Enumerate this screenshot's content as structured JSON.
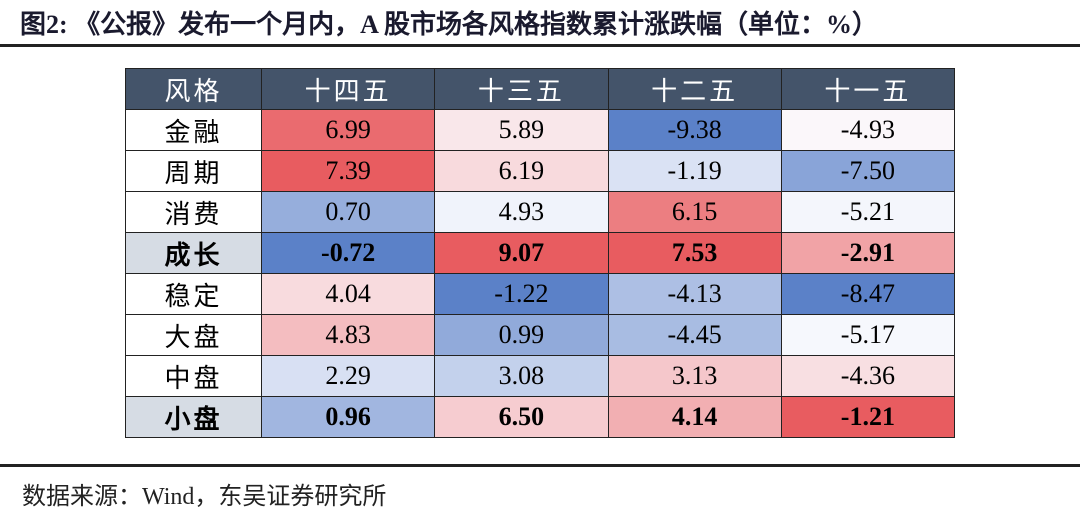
{
  "title": "图2:   《公报》发布一个月内，A 股市场各风格指数累计涨跌幅（单位：%）",
  "table": {
    "header": [
      "风格",
      "十四五",
      "十三五",
      "十二五",
      "十一五"
    ],
    "rows": [
      {
        "label": "金融",
        "values": [
          "6.99",
          "5.89",
          "-9.38",
          "-4.93"
        ],
        "bold": false
      },
      {
        "label": "周期",
        "values": [
          "7.39",
          "6.19",
          "-1.19",
          "-7.50"
        ],
        "bold": false
      },
      {
        "label": "消费",
        "values": [
          "0.70",
          "4.93",
          "6.15",
          "-5.21"
        ],
        "bold": false
      },
      {
        "label": "成长",
        "values": [
          "-0.72",
          "9.07",
          "7.53",
          "-2.91"
        ],
        "bold": true
      },
      {
        "label": "稳定",
        "values": [
          "4.04",
          "-1.22",
          "-4.13",
          "-8.47"
        ],
        "bold": false
      },
      {
        "label": "大盘",
        "values": [
          "4.83",
          "0.99",
          "-4.45",
          "-5.17"
        ],
        "bold": false
      },
      {
        "label": "中盘",
        "values": [
          "2.29",
          "3.08",
          "3.13",
          "-4.36"
        ],
        "bold": false
      },
      {
        "label": "小盘",
        "values": [
          "0.96",
          "6.50",
          "4.14",
          "-1.21"
        ],
        "bold": true
      }
    ],
    "low_color": "#5b81c8",
    "mid_color": "#fcfcff",
    "high_color": "#e85c60",
    "header_color": "#44546a",
    "label_highlight_color": "#d6dce4"
  },
  "source": "数据来源：Wind，东吴证券研究所"
}
